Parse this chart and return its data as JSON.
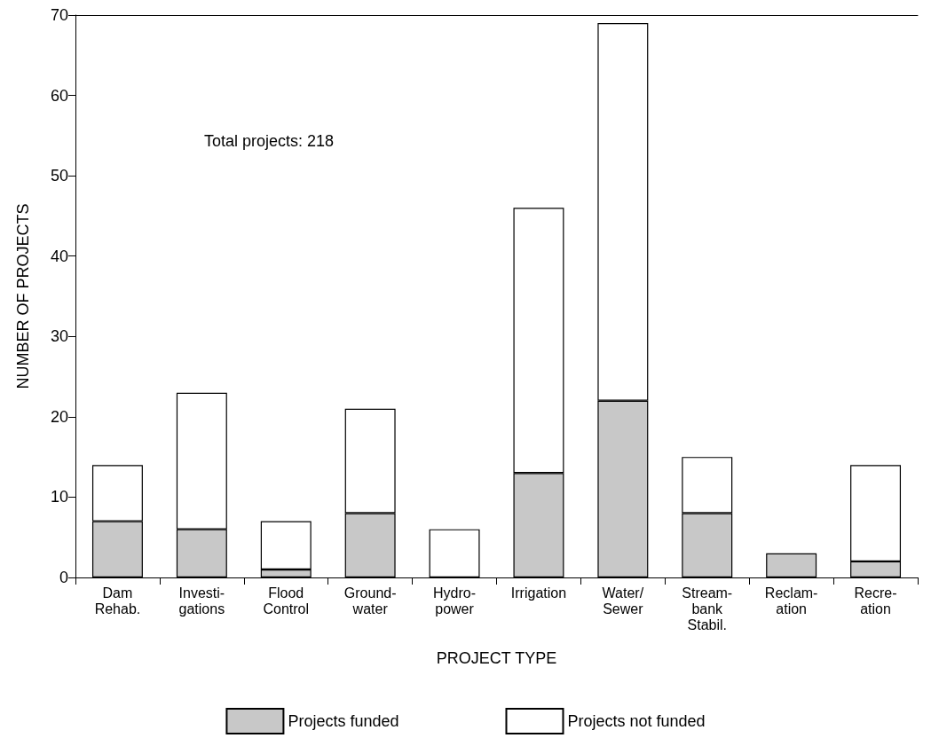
{
  "chart_data": {
    "type": "bar",
    "stacked": true,
    "xlabel": "PROJECT TYPE",
    "ylabel": "NUMBER OF PROJECTS",
    "categories": [
      "Dam\nRehab.",
      "Investi-\ngations",
      "Flood\nControl",
      "Ground-\nwater",
      "Hydro-\npower",
      "Irrigation",
      "Water/\nSewer",
      "Stream-\nbank\nStabil.",
      "Reclam-\nation",
      "Recre-\nation"
    ],
    "series": [
      {
        "name": "Projects funded",
        "color": "#c8c8c8",
        "values": [
          7,
          6,
          1,
          8,
          0,
          13,
          22,
          8,
          3,
          2
        ]
      },
      {
        "name": "Projects not funded",
        "color": "#ffffff",
        "values": [
          7,
          17,
          6,
          13,
          6,
          33,
          47,
          7,
          0,
          12
        ]
      }
    ],
    "ylim": [
      0,
      70
    ],
    "yticks": [
      0,
      10,
      20,
      30,
      40,
      50,
      60,
      70
    ],
    "grid": false,
    "legend": "bottom",
    "annotations": [
      "Total projects: 218"
    ]
  }
}
